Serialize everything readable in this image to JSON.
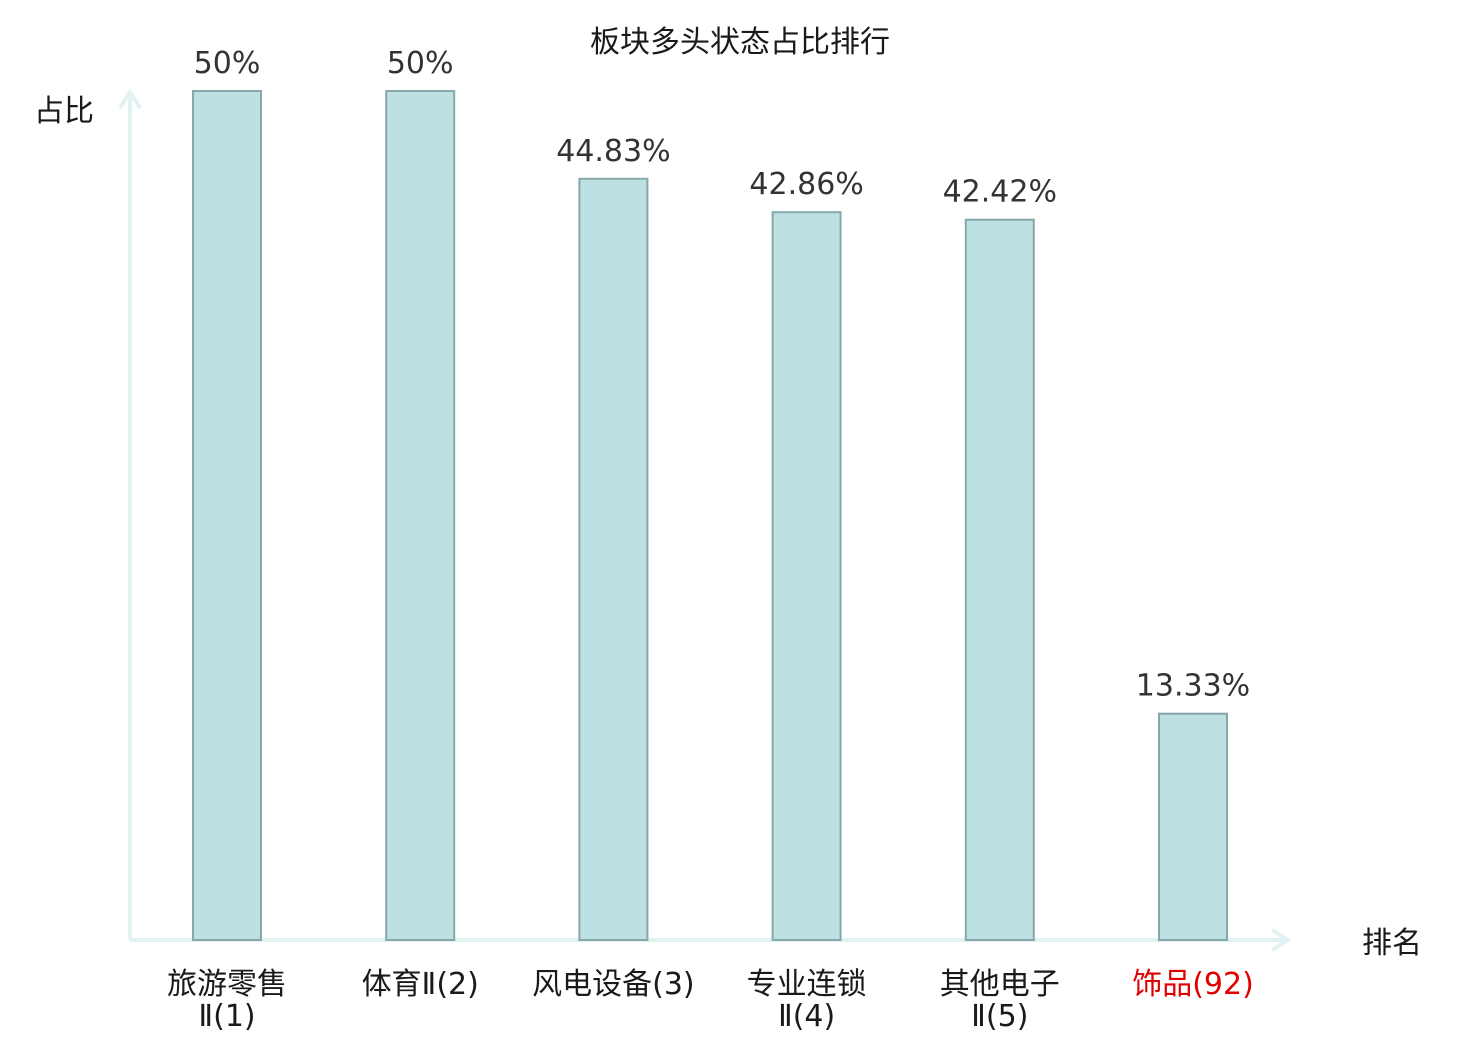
{
  "chart_data": {
    "type": "bar",
    "title": "板块多头状态占比排行",
    "xlabel": "排名",
    "ylabel": "占比",
    "ylim": [
      0,
      50
    ],
    "categories": [
      {
        "name_lines": [
          "旅游零售",
          "Ⅱ(1)"
        ],
        "highlight": false
      },
      {
        "name_lines": [
          "体育Ⅱ(2)"
        ],
        "highlight": false
      },
      {
        "name_lines": [
          "风电设备(3)"
        ],
        "highlight": false
      },
      {
        "name_lines": [
          "专业连锁",
          "Ⅱ(4)"
        ],
        "highlight": false
      },
      {
        "name_lines": [
          "其他电子",
          "Ⅱ(5)"
        ],
        "highlight": false
      },
      {
        "name_lines": [
          "饰品(92)"
        ],
        "highlight": true
      }
    ],
    "values": [
      50,
      50,
      44.83,
      42.86,
      42.42,
      13.33
    ],
    "value_labels": [
      "50%",
      "50%",
      "44.83%",
      "42.86%",
      "42.42%",
      "13.33%"
    ],
    "colors": {
      "bar_fill": "#bde0e3",
      "bar_stroke": "#86a8ab",
      "axis": "#e0f2f1",
      "highlight_label": "#e00000",
      "text": "#1a1a1a"
    },
    "grid": false,
    "legend": "none"
  }
}
